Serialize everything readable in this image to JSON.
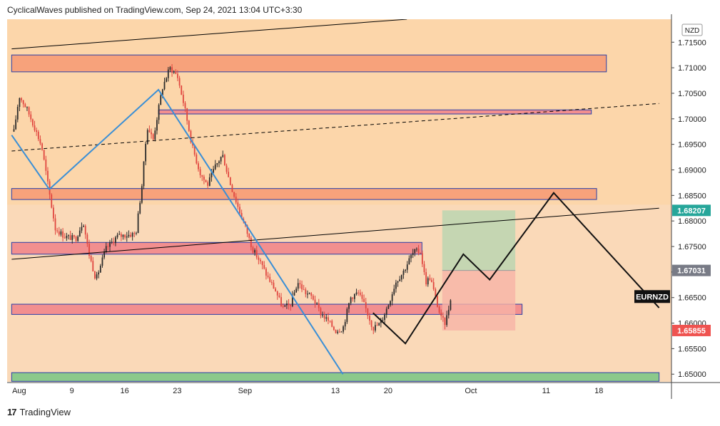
{
  "header": {
    "publisher_line": "CyclicalWaves published on TradingView.com, Sep 24, 2021 13:04 UTC+3:30"
  },
  "footer": {
    "logo_glyph": "17",
    "brand": "TradingView"
  },
  "chart_data": {
    "type": "candlestick",
    "symbol": "EURNZD",
    "currency": "NZD",
    "ylim": [
      1.6485,
      1.7195
    ],
    "y_ticks": [
      "1.71500",
      "1.71000",
      "1.70500",
      "1.70000",
      "1.69500",
      "1.69000",
      "1.68500",
      "1.68000",
      "1.67500",
      "1.67000",
      "1.66500",
      "1.66000",
      "1.65500",
      "1.65000"
    ],
    "x_ticks": [
      {
        "label": "Aug",
        "day": 2
      },
      {
        "label": "9",
        "day": 9
      },
      {
        "label": "16",
        "day": 16
      },
      {
        "label": "23",
        "day": 23
      },
      {
        "label": "Sep",
        "day": 32
      },
      {
        "label": "13",
        "day": 44
      },
      {
        "label": "20",
        "day": 51
      },
      {
        "label": "Oct",
        "day": 62
      },
      {
        "label": "11",
        "day": 72
      },
      {
        "label": "18",
        "day": 79
      }
    ],
    "price_badges": [
      {
        "label": "1.68207",
        "value": 1.68207,
        "color": "#26a69a"
      },
      {
        "label": "1.67031",
        "value": 1.67031,
        "color": "#787b86"
      },
      {
        "label": "1.65855",
        "value": 1.65855,
        "color": "#ef5350"
      }
    ],
    "zones": [
      {
        "name": "zone-top",
        "day_start": 1,
        "day_end": 80,
        "y_low": 1.7092,
        "y_high": 1.7125,
        "fill": "#f7a27b"
      },
      {
        "name": "zone-1700",
        "day_start": 20.5,
        "day_end": 78,
        "y_low": 1.70095,
        "y_high": 1.70175,
        "fill": "#f28f8f"
      },
      {
        "name": "zone-1685",
        "day_start": 1,
        "day_end": 78.7,
        "y_low": 1.6842,
        "y_high": 1.68635,
        "fill": "#f7a27b"
      },
      {
        "name": "zone-1675",
        "day_start": 1,
        "day_end": 55.5,
        "y_low": 1.6735,
        "y_high": 1.6758,
        "fill": "#f28f8f"
      },
      {
        "name": "zone-1662",
        "day_start": 1,
        "day_end": 68.8,
        "y_low": 1.6617,
        "y_high": 1.6637,
        "fill": "#f28f8f"
      },
      {
        "name": "zone-bottom",
        "day_start": 1,
        "day_end": 87,
        "y_low": 1.6486,
        "y_high": 1.6503,
        "fill": "#8bc98b"
      }
    ],
    "position_box": {
      "day_start": 58.2,
      "day_end": 67.9,
      "target": 1.68207,
      "entry": 1.67031,
      "stop": 1.65855
    },
    "trend_lines": [
      {
        "name": "upper-channel-line",
        "style": "solid",
        "color": "#000000",
        "points": [
          [
            1,
            1.7137
          ],
          [
            53.5,
            1.7195
          ]
        ]
      },
      {
        "name": "dashed-trend-line",
        "style": "dashed",
        "color": "#000000",
        "points": [
          [
            1,
            1.6937
          ],
          [
            87,
            1.703
          ]
        ]
      },
      {
        "name": "lower-channel-line",
        "style": "solid",
        "color": "#000000",
        "points": [
          [
            1,
            1.6725
          ],
          [
            87,
            1.6825
          ]
        ]
      }
    ],
    "blue_path": [
      [
        1,
        1.6968
      ],
      [
        6,
        1.6862
      ],
      [
        20.5,
        1.7057
      ],
      [
        45,
        1.65
      ]
    ],
    "projection_path": [
      [
        49,
        1.662
      ],
      [
        53.3,
        1.656
      ],
      [
        61,
        1.6735
      ],
      [
        64.5,
        1.6685
      ],
      [
        73,
        1.6855
      ],
      [
        87,
        1.663
      ]
    ]
  }
}
